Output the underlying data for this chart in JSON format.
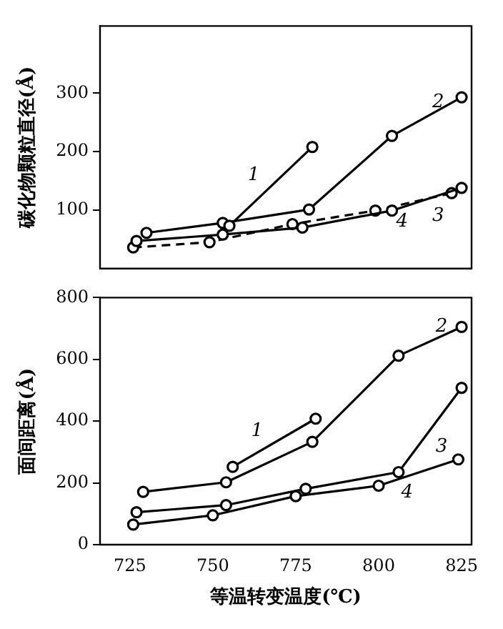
{
  "chart_data": [
    {
      "type": "line",
      "ylabel": "碳化物颗粒直径(Å)",
      "xlim": [
        716,
        828
      ],
      "xticks": [
        725,
        750,
        775,
        800,
        825
      ],
      "ylim": [
        0,
        415
      ],
      "yticks": [
        100,
        200,
        300
      ],
      "tick_labels": "y",
      "grid": false,
      "legend": false,
      "marker": "circle",
      "series": [
        {
          "name": "1",
          "color": "#000000",
          "x": [
            755,
            780
          ],
          "values": [
            73,
            208
          ]
        },
        {
          "name": "2",
          "color": "#000000",
          "x": [
            730,
            753,
            779,
            804,
            825
          ],
          "values": [
            61,
            78,
            101,
            227,
            293
          ]
        },
        {
          "name": "3",
          "color": "#000000",
          "x": [
            727,
            753,
            777,
            804,
            825
          ],
          "values": [
            47,
            58,
            70,
            99,
            138
          ]
        },
        {
          "name": "4",
          "color": "#000000",
          "line_style": "dashed",
          "x": [
            726,
            749,
            774,
            799,
            822
          ],
          "values": [
            36,
            45,
            76,
            99,
            129
          ]
        }
      ]
    },
    {
      "type": "line",
      "xlabel": "等温转变温度(℃)",
      "ylabel": "面间距离(Å)",
      "xlim": [
        716,
        828
      ],
      "xticks": [
        725,
        750,
        775,
        800,
        825
      ],
      "ylim": [
        0,
        800
      ],
      "yticks": [
        0,
        200,
        400,
        600,
        800
      ],
      "grid": false,
      "legend": false,
      "marker": "circle",
      "series": [
        {
          "name": "1",
          "color": "#000000",
          "x": [
            756,
            781
          ],
          "values": [
            252,
            408
          ]
        },
        {
          "name": "2",
          "color": "#000000",
          "x": [
            729,
            754,
            780,
            806,
            825
          ],
          "values": [
            171,
            202,
            333,
            612,
            705
          ]
        },
        {
          "name": "3",
          "color": "#000000",
          "x": [
            727,
            754,
            778,
            806,
            825
          ],
          "values": [
            105,
            128,
            181,
            235,
            508
          ]
        },
        {
          "name": "4",
          "color": "#000000",
          "x": [
            726,
            750,
            775,
            800,
            824
          ],
          "values": [
            65,
            95,
            157,
            191,
            276
          ]
        }
      ]
    }
  ]
}
